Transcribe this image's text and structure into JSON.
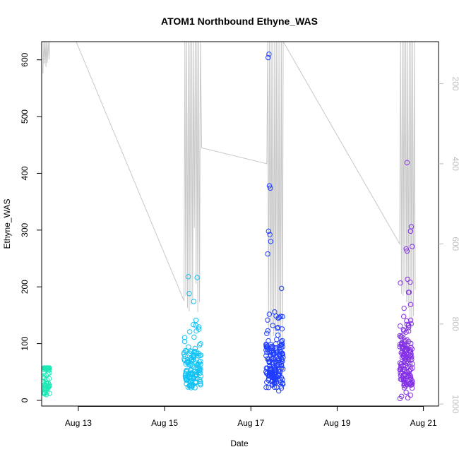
{
  "chart_data": {
    "type": "scatter",
    "title": "ATOM1 Northbound Ethyne_WAS",
    "xlabel": "Date",
    "ylabel": "Ethyne_WAS",
    "x_range_days": [
      12.15,
      21.35
    ],
    "x_tick_labels": [
      {
        "day": 13,
        "label": "Aug 13"
      },
      {
        "day": 15,
        "label": "Aug 15"
      },
      {
        "day": 17,
        "label": "Aug 17"
      },
      {
        "day": 19,
        "label": "Aug 19"
      },
      {
        "day": 21,
        "label": "Aug 21"
      }
    ],
    "ylim": [
      -10,
      632
    ],
    "y_ticks": [
      0,
      100,
      200,
      300,
      400,
      500,
      600
    ],
    "right_axis": {
      "ylim_inverted": [
        1005,
        95
      ],
      "ticks": [
        200,
        400,
        600,
        800,
        1000
      ],
      "color": "#bdbdbd"
    },
    "grid": false,
    "series_colors": [
      "#00fa9a",
      "#00bfff",
      "#1e3cff",
      "#8a2be2"
    ],
    "groups": [
      {
        "color": "#1de9b6",
        "day_start": 12.18,
        "day_end": 12.34,
        "y_min": 10,
        "y_max": 57,
        "y_center": 45,
        "count": 60
      },
      {
        "color": "#12c2f4",
        "day_start": 15.45,
        "day_end": 15.85,
        "y_min": 22,
        "y_max": 218,
        "y_center": 55,
        "count": 130
      },
      {
        "color": "#1f3dff",
        "day_start": 17.35,
        "day_end": 17.75,
        "y_min": 15,
        "y_max": 610,
        "y_center": 60,
        "count": 170
      },
      {
        "color": "#8430e6",
        "day_start": 20.45,
        "day_end": 20.75,
        "y_min": 3,
        "y_max": 420,
        "y_center": 65,
        "count": 150
      }
    ],
    "highlight_points": [
      {
        "day": 17.42,
        "y": 610,
        "color": "#1f3dff"
      },
      {
        "day": 17.4,
        "y": 604,
        "color": "#1f3dff"
      },
      {
        "day": 17.43,
        "y": 378,
        "color": "#1f3dff"
      },
      {
        "day": 17.45,
        "y": 374,
        "color": "#1f3dff"
      },
      {
        "day": 17.41,
        "y": 298,
        "color": "#1f3dff"
      },
      {
        "day": 17.44,
        "y": 292,
        "color": "#1f3dff"
      },
      {
        "day": 17.46,
        "y": 280,
        "color": "#1f3dff"
      },
      {
        "day": 17.39,
        "y": 258,
        "color": "#1f3dff"
      },
      {
        "day": 20.62,
        "y": 419,
        "color": "#8430e6"
      },
      {
        "day": 20.72,
        "y": 306,
        "color": "#8430e6"
      },
      {
        "day": 20.7,
        "y": 298,
        "color": "#8430e6"
      },
      {
        "day": 20.74,
        "y": 271,
        "color": "#8430e6"
      },
      {
        "day": 20.6,
        "y": 267,
        "color": "#8430e6"
      },
      {
        "day": 20.62,
        "y": 263,
        "color": "#8430e6"
      },
      {
        "day": 15.55,
        "y": 218,
        "color": "#12c2f4"
      },
      {
        "day": 12.27,
        "y": 14,
        "color": "#1de9b6"
      },
      {
        "day": 12.26,
        "y": 10,
        "color": "#1de9b6"
      }
    ],
    "line_series": {
      "color": "#c8c8c8",
      "points": [
        [
          12.18,
          174
        ],
        [
          12.2,
          95
        ],
        [
          12.21,
          150
        ],
        [
          12.23,
          95
        ],
        [
          12.25,
          158
        ],
        [
          12.26,
          95
        ],
        [
          12.28,
          148
        ],
        [
          12.3,
          95
        ],
        [
          12.32,
          140
        ],
        [
          12.34,
          95
        ],
        [
          12.95,
          95
        ],
        [
          15.45,
          742
        ],
        [
          15.47,
          95
        ],
        [
          15.49,
          730
        ],
        [
          15.51,
          95
        ],
        [
          15.53,
          760
        ],
        [
          15.55,
          95
        ],
        [
          15.57,
          768
        ],
        [
          15.59,
          95
        ],
        [
          15.61,
          752
        ],
        [
          15.63,
          95
        ],
        [
          15.65,
          740
        ],
        [
          15.67,
          95
        ],
        [
          15.69,
          560
        ],
        [
          15.71,
          95
        ],
        [
          15.73,
          700
        ],
        [
          15.75,
          95
        ],
        [
          15.77,
          770
        ],
        [
          15.79,
          95
        ],
        [
          15.81,
          745
        ],
        [
          15.83,
          95
        ],
        [
          15.86,
          360
        ],
        [
          17.37,
          400
        ],
        [
          17.39,
          95
        ],
        [
          17.41,
          820
        ],
        [
          17.43,
          95
        ],
        [
          17.45,
          840
        ],
        [
          17.47,
          95
        ],
        [
          17.49,
          805
        ],
        [
          17.51,
          95
        ],
        [
          17.53,
          830
        ],
        [
          17.55,
          95
        ],
        [
          17.57,
          825
        ],
        [
          17.59,
          95
        ],
        [
          17.61,
          815
        ],
        [
          17.63,
          95
        ],
        [
          17.65,
          835
        ],
        [
          17.67,
          95
        ],
        [
          17.69,
          845
        ],
        [
          17.71,
          95
        ],
        [
          17.73,
          870
        ],
        [
          17.75,
          95
        ],
        [
          20.45,
          600
        ],
        [
          20.47,
          95
        ],
        [
          20.49,
          725
        ],
        [
          20.51,
          95
        ],
        [
          20.53,
          730
        ],
        [
          20.55,
          95
        ],
        [
          20.57,
          720
        ],
        [
          20.59,
          95
        ],
        [
          20.61,
          745
        ],
        [
          20.63,
          95
        ],
        [
          20.65,
          760
        ],
        [
          20.67,
          95
        ],
        [
          20.69,
          800
        ],
        [
          20.71,
          95
        ],
        [
          20.73,
          810
        ],
        [
          20.75,
          95
        ],
        [
          20.77,
          780
        ],
        [
          20.79,
          95
        ],
        [
          20.81,
          715
        ]
      ]
    }
  }
}
